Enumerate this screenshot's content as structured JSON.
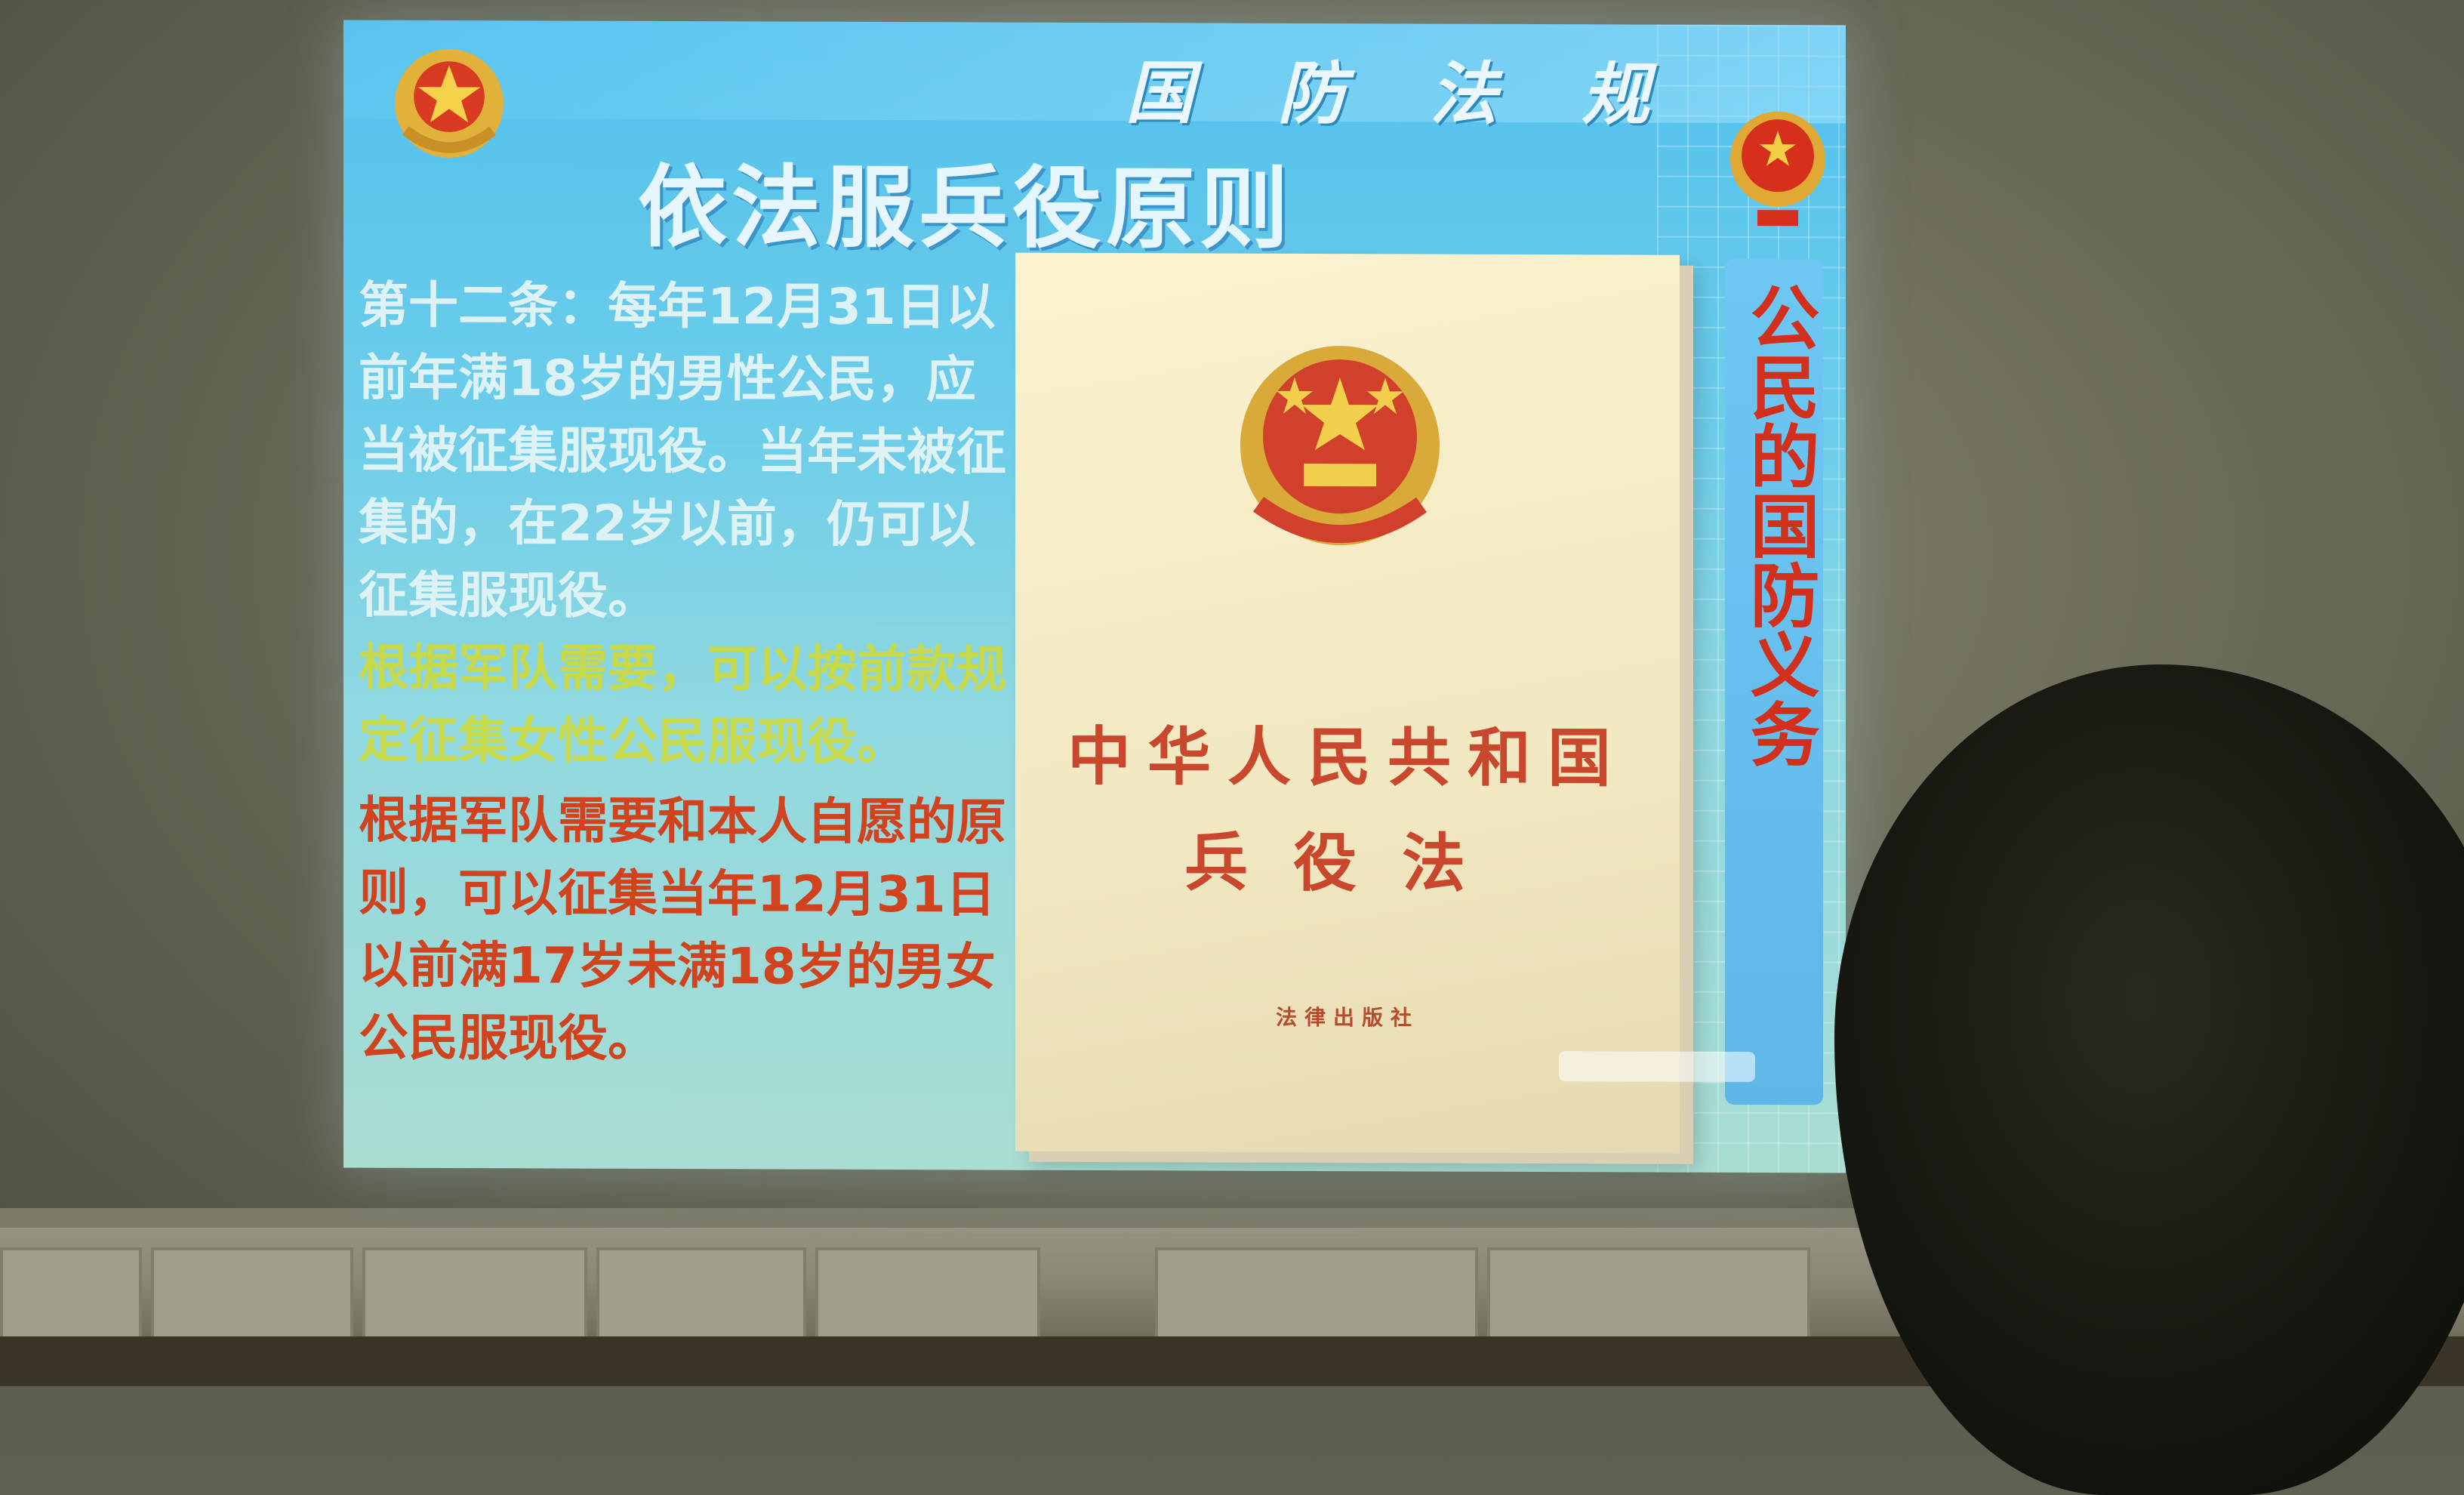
{
  "slide": {
    "header_text": "国 防 法 规",
    "title": "依法服兵役原则",
    "paragraphs": [
      "第十二条：每年12月31日以前年满18岁的男性公民，应当被征集服现役。当年未被征集的，在22岁以前，仍可以征集服现役。",
      "根据军队需要，可以按前款规定征集女性公民服现役。",
      "根据军队需要和本人自愿的原则，可以征集当年12月31日以前满17岁未满18岁的男女公民服现役。"
    ],
    "sidebar_text": "公民的国防义务",
    "colors": {
      "background": "#6ccdea",
      "para_default": "#ddf2f5",
      "para_highlight": "#c8d94a",
      "para_emphasis": "#d0431e"
    }
  },
  "book": {
    "title": "中华人民共和国",
    "subtitle": "兵役法",
    "publisher": "法律出版社",
    "color": "#c8472d"
  },
  "icons": {
    "left_emblem": "military-emblem-icon",
    "right_emblem": "national-emblem-icon",
    "book_emblem": "national-emblem-icon"
  }
}
